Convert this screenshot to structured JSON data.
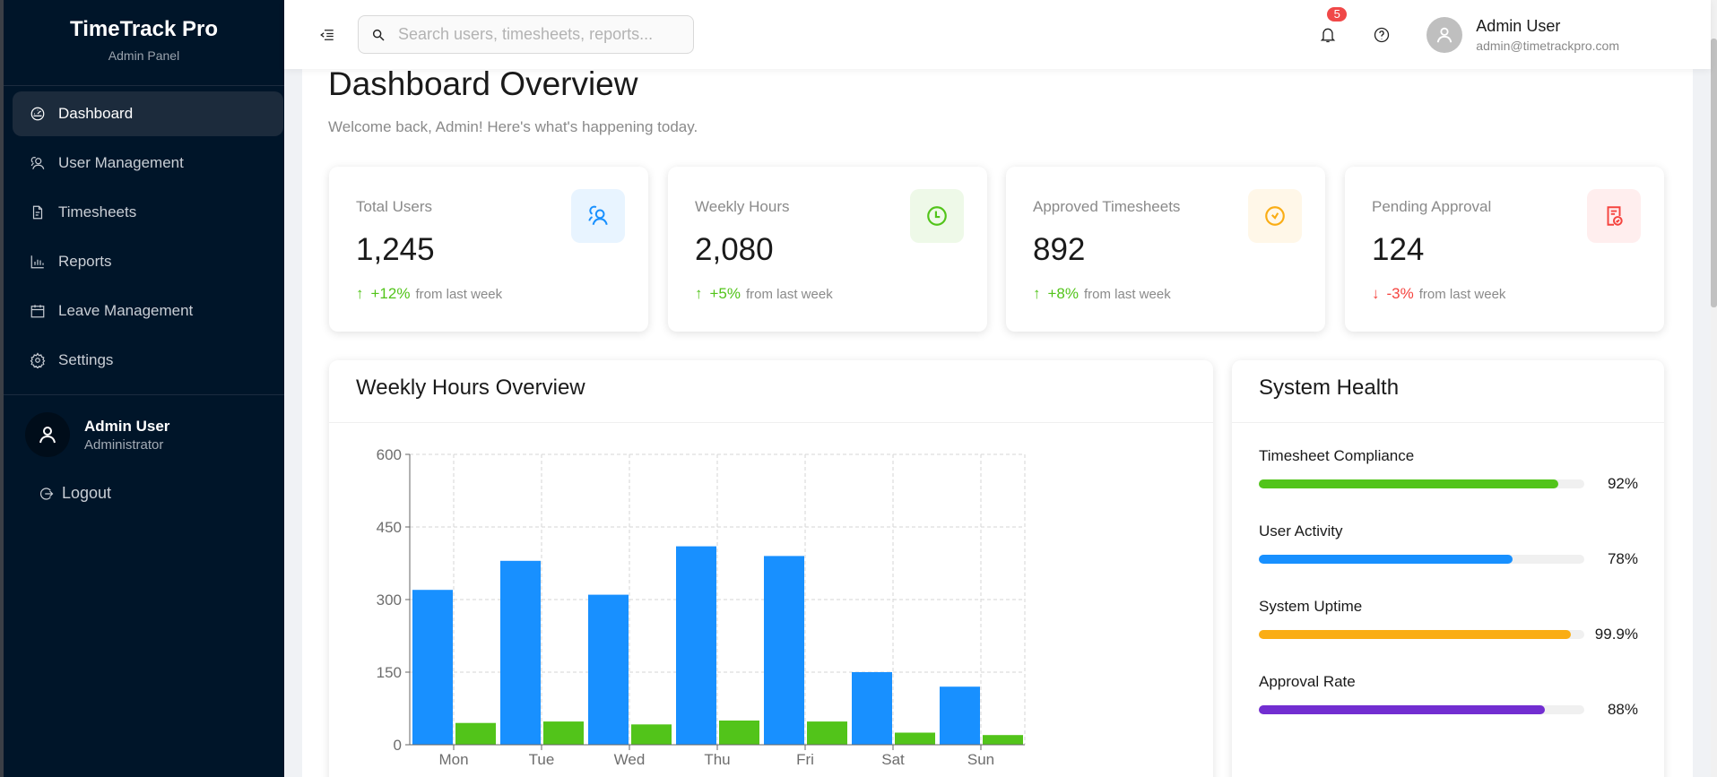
{
  "sidebar": {
    "brand_title": "TimeTrack Pro",
    "brand_subtitle": "Admin Panel",
    "items": [
      {
        "label": "Dashboard",
        "icon": "dashboard-icon",
        "active": true
      },
      {
        "label": "User Management",
        "icon": "users-icon",
        "active": false
      },
      {
        "label": "Timesheets",
        "icon": "file-icon",
        "active": false
      },
      {
        "label": "Reports",
        "icon": "bar-chart-icon",
        "active": false
      },
      {
        "label": "Leave Management",
        "icon": "calendar-icon",
        "active": false
      },
      {
        "label": "Settings",
        "icon": "gear-icon",
        "active": false
      }
    ],
    "user": {
      "name": "Admin User",
      "role": "Administrator"
    },
    "logout_label": "Logout"
  },
  "header": {
    "search_placeholder": "Search users, timesheets, reports...",
    "search_value": "",
    "notification_count": "5",
    "user_name": "Admin User",
    "user_email": "admin@timetrackpro.com"
  },
  "page": {
    "title": "Dashboard Overview",
    "subtitle": "Welcome back, Admin! Here's what's happening today."
  },
  "stats": [
    {
      "label": "Total Users",
      "value": "1,245",
      "change": "+12%",
      "direction": "up",
      "suffix": "from last week",
      "icon": "users-icon",
      "icon_color": "#1890ff",
      "icon_bg": "#e8f4ff"
    },
    {
      "label": "Weekly Hours",
      "value": "2,080",
      "change": "+5%",
      "direction": "up",
      "suffix": "from last week",
      "icon": "clock-icon",
      "icon_color": "#52c41a",
      "icon_bg": "#eef9e8"
    },
    {
      "label": "Approved Timesheets",
      "value": "892",
      "change": "+8%",
      "direction": "up",
      "suffix": "from last week",
      "icon": "check-circle-icon",
      "icon_color": "#faad14",
      "icon_bg": "#fff7e8"
    },
    {
      "label": "Pending Approval",
      "value": "124",
      "change": "-3%",
      "direction": "down",
      "suffix": "from last week",
      "icon": "file-check-icon",
      "icon_color": "#f5443f",
      "icon_bg": "#ffeeee"
    }
  ],
  "weekly_panel": {
    "title": "Weekly Hours Overview"
  },
  "health_panel": {
    "title": "System Health",
    "items": [
      {
        "label": "Timesheet Compliance",
        "value": "92%",
        "percent": 92,
        "color": "#52c41a"
      },
      {
        "label": "User Activity",
        "value": "78%",
        "percent": 78,
        "color": "#1890ff"
      },
      {
        "label": "System Uptime",
        "value": "99.9%",
        "percent": 99.9,
        "color": "#faad14"
      },
      {
        "label": "Approval Rate",
        "value": "88%",
        "percent": 88,
        "color": "#722ed1"
      }
    ]
  },
  "chart_data": {
    "type": "bar",
    "title": "Weekly Hours Overview",
    "categories": [
      "Mon",
      "Tue",
      "Wed",
      "Thu",
      "Fri",
      "Sat",
      "Sun"
    ],
    "series": [
      {
        "name": "Series 1 (blue)",
        "color": "#1890ff",
        "values": [
          320,
          380,
          310,
          410,
          390,
          150,
          120
        ]
      },
      {
        "name": "Series 2 (green)",
        "color": "#52c41a",
        "values": [
          45,
          48,
          42,
          50,
          48,
          25,
          20
        ]
      }
    ],
    "xlabel": "",
    "ylabel": "",
    "ylim": [
      0,
      600
    ],
    "yticks": [
      0,
      150,
      300,
      450,
      600
    ],
    "grid": true,
    "legend": "none visible"
  }
}
